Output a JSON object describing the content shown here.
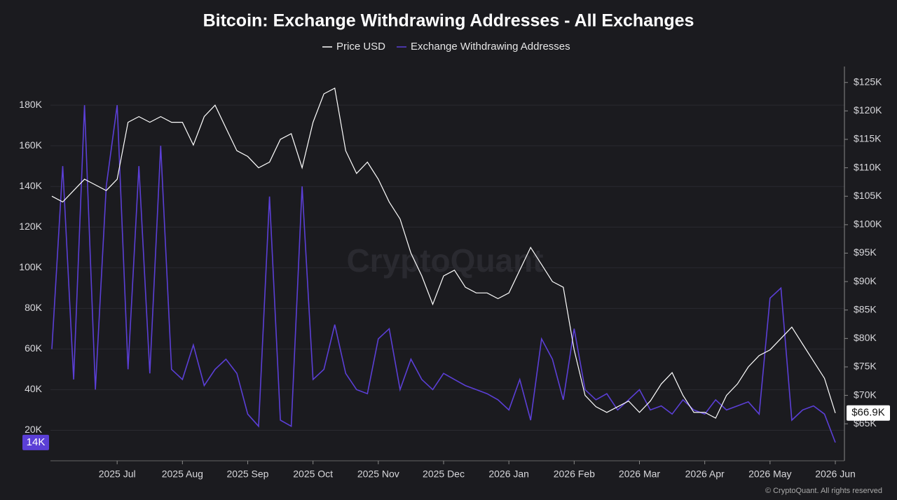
{
  "chart_data": {
    "type": "line",
    "title": "Bitcoin: Exchange Withdrawing Addresses - All Exchanges",
    "watermark": "CryptoQuant",
    "footer": "© CryptoQuant. All rights reserved",
    "categories": [
      null,
      null,
      null,
      null,
      null,
      null,
      "2025 Jul",
      null,
      null,
      null,
      null,
      null,
      "2025 Aug",
      null,
      null,
      null,
      null,
      null,
      "2025 Sep",
      null,
      null,
      null,
      null,
      null,
      "2025 Oct",
      null,
      null,
      null,
      null,
      null,
      "2025 Nov",
      null,
      null,
      null,
      null,
      null,
      "2025 Dec",
      null,
      null,
      null,
      null,
      null,
      "2026 Jan",
      null,
      null,
      null,
      null,
      null,
      "2026 Feb",
      null,
      null,
      null,
      null,
      null,
      "2026 Mar",
      null,
      null,
      null,
      null,
      null,
      "2026 Apr",
      null,
      null,
      null,
      null,
      null,
      "2026 May",
      null,
      null,
      null,
      null,
      null,
      "2026 Jun"
    ],
    "series": [
      {
        "name": "Price USD",
        "color": "#ffffff",
        "axis": "y2",
        "values": [
          105000,
          104000,
          106000,
          108000,
          107000,
          106000,
          108000,
          118000,
          119000,
          118000,
          119000,
          118000,
          118000,
          114000,
          119000,
          121000,
          117000,
          113000,
          112000,
          110000,
          111000,
          115000,
          116000,
          110000,
          118000,
          123000,
          124000,
          113000,
          109000,
          111000,
          108000,
          104000,
          101000,
          95000,
          91000,
          86000,
          91000,
          92000,
          89000,
          88000,
          88000,
          87000,
          88000,
          92000,
          96000,
          93000,
          90000,
          89000,
          78000,
          70000,
          68000,
          67000,
          68000,
          69000,
          67000,
          69000,
          72000,
          74000,
          70000,
          67000,
          67000,
          66000,
          70000,
          72000,
          75000,
          77000,
          78000,
          80000,
          82000,
          79000,
          76000,
          73000,
          66900
        ],
        "value_labels": [
          null,
          null,
          null,
          null,
          null,
          null,
          null,
          null,
          null,
          null,
          null,
          null,
          null,
          null,
          null,
          null,
          null,
          null,
          null,
          null,
          null,
          null,
          null,
          null,
          null,
          null,
          null,
          null,
          null,
          null,
          null,
          null,
          null,
          null,
          null,
          null,
          null,
          null,
          null,
          null,
          null,
          null,
          null,
          null,
          null,
          null,
          null,
          null,
          null,
          null,
          null,
          null,
          null,
          null,
          null,
          null,
          null,
          null,
          null,
          null,
          null,
          null,
          null,
          null,
          null,
          null,
          null,
          null,
          null,
          null,
          null,
          null,
          "$66.9K"
        ]
      },
      {
        "name": "Exchange Withdrawing Addresses",
        "color": "#5b3fd6",
        "values": [
          60000,
          150000,
          45000,
          180000,
          40000,
          140000,
          180000,
          50000,
          150000,
          48000,
          160000,
          50000,
          45000,
          62000,
          42000,
          50000,
          55000,
          48000,
          28000,
          22000,
          135000,
          25000,
          22000,
          140000,
          45000,
          50000,
          72000,
          48000,
          40000,
          38000,
          65000,
          70000,
          40000,
          55000,
          45000,
          40000,
          48000,
          45000,
          42000,
          40000,
          38000,
          35000,
          30000,
          45000,
          25000,
          65000,
          55000,
          35000,
          70000,
          40000,
          35000,
          38000,
          30000,
          35000,
          40000,
          30000,
          32000,
          28000,
          35000,
          30000,
          28000,
          35000,
          30000,
          32000,
          34000,
          28000,
          85000,
          90000,
          25000,
          30000,
          32000,
          28000,
          14000
        ],
        "value_labels": [
          null,
          null,
          null,
          null,
          null,
          null,
          null,
          null,
          null,
          null,
          null,
          null,
          null,
          null,
          null,
          null,
          null,
          null,
          null,
          null,
          null,
          null,
          null,
          null,
          null,
          null,
          null,
          null,
          null,
          null,
          null,
          null,
          null,
          null,
          null,
          null,
          null,
          null,
          null,
          null,
          null,
          null,
          null,
          null,
          null,
          null,
          null,
          null,
          null,
          null,
          null,
          null,
          null,
          null,
          null,
          null,
          null,
          null,
          null,
          null,
          null,
          null,
          null,
          null,
          null,
          null,
          null,
          null,
          null,
          null,
          null,
          null,
          "14K"
        ]
      }
    ],
    "ylim": [
      5000,
      199000
    ],
    "yticks": [
      {
        "value": 20000,
        "label": "20K"
      },
      {
        "value": 40000,
        "label": "40K"
      },
      {
        "value": 60000,
        "label": "60K"
      },
      {
        "value": 80000,
        "label": "80K"
      },
      {
        "value": 100000,
        "label": "100K"
      },
      {
        "value": 120000,
        "label": "120K"
      },
      {
        "value": 140000,
        "label": "140K"
      },
      {
        "value": 160000,
        "label": "160K"
      },
      {
        "value": 180000,
        "label": "180K"
      }
    ],
    "y2lim": [
      58500,
      127800
    ],
    "y2ticks": [
      {
        "value": 65000,
        "label": "$65K"
      },
      {
        "value": 70000,
        "label": "$70K"
      },
      {
        "value": 75000,
        "label": "$75K"
      },
      {
        "value": 80000,
        "label": "$80K"
      },
      {
        "value": 85000,
        "label": "$85K"
      },
      {
        "value": 90000,
        "label": "$90K"
      },
      {
        "value": 95000,
        "label": "$95K"
      },
      {
        "value": 100000,
        "label": "$100K"
      },
      {
        "value": 105000,
        "label": "$105K"
      },
      {
        "value": 110000,
        "label": "$110K"
      },
      {
        "value": 115000,
        "label": "$115K"
      },
      {
        "value": 120000,
        "label": "$120K"
      },
      {
        "value": 125000,
        "label": "$125K"
      }
    ],
    "grid": true,
    "legend": "top"
  }
}
